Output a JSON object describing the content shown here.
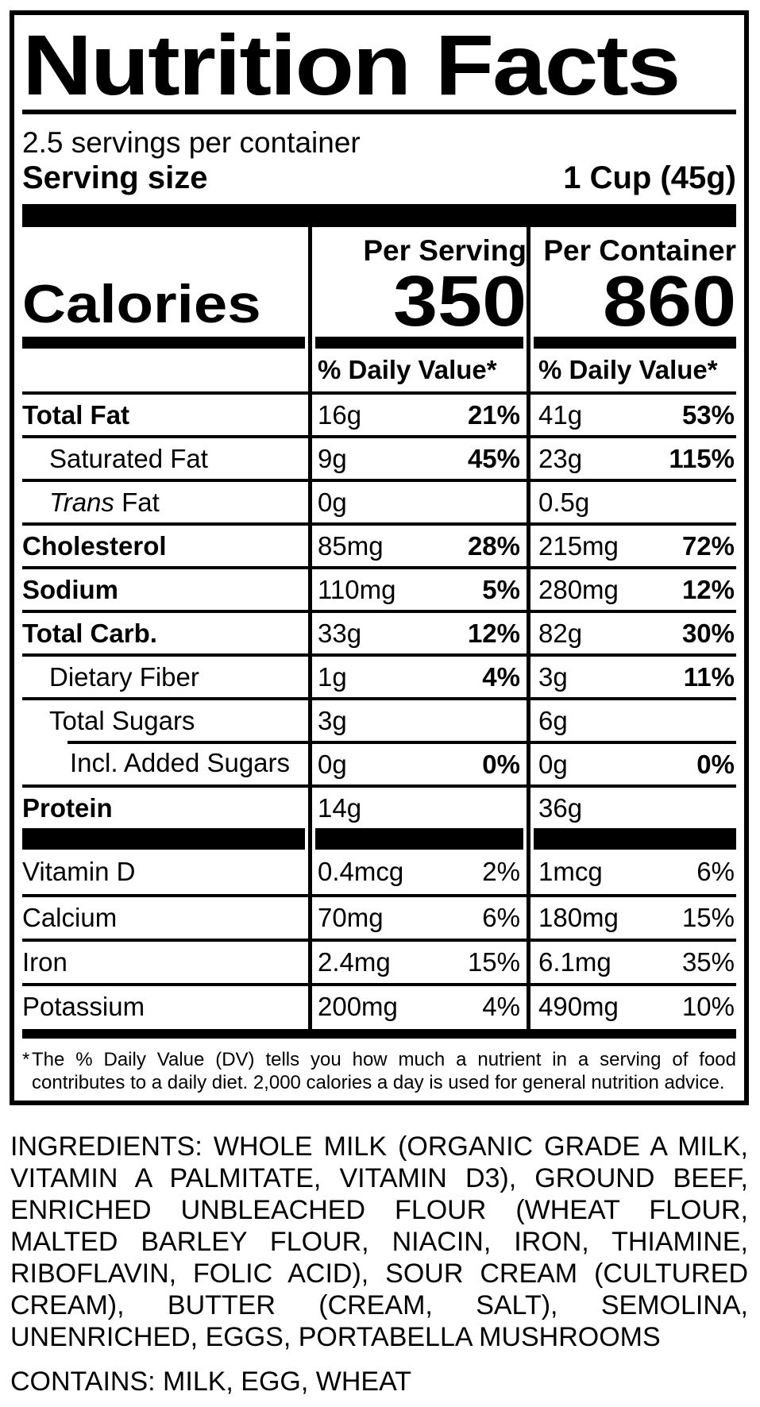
{
  "colors": {
    "ink": "#000000",
    "paper": "#ffffff"
  },
  "label": {
    "title": "Nutrition Facts",
    "servings_per_container": "2.5 servings per container",
    "serving_size": {
      "label": "Serving size",
      "value": "1 Cup (45g)"
    },
    "calories": {
      "label": "Calories",
      "columns": [
        {
          "header": "Per Serving",
          "value": "350"
        },
        {
          "header": "Per Container",
          "value": "860"
        }
      ]
    },
    "daily_value_header": "% Daily Value*",
    "nutrients": [
      {
        "name": "Total Fat",
        "bold": true,
        "indent": 0,
        "cols": [
          {
            "amount": "16g",
            "dv": "21%"
          },
          {
            "amount": "41g",
            "dv": "53%"
          }
        ]
      },
      {
        "name": "Saturated Fat",
        "bold": false,
        "indent": 1,
        "cols": [
          {
            "amount": "9g",
            "dv": "45%"
          },
          {
            "amount": "23g",
            "dv": "115%"
          }
        ]
      },
      {
        "name": " Fat",
        "italic_prefix": "Trans",
        "bold": false,
        "indent": 1,
        "cols": [
          {
            "amount": "0g",
            "dv": ""
          },
          {
            "amount": "0.5g",
            "dv": ""
          }
        ]
      },
      {
        "name": "Cholesterol",
        "bold": true,
        "indent": 0,
        "cols": [
          {
            "amount": "85mg",
            "dv": "28%"
          },
          {
            "amount": "215mg",
            "dv": "72%"
          }
        ]
      },
      {
        "name": "Sodium",
        "bold": true,
        "indent": 0,
        "cols": [
          {
            "amount": "110mg",
            "dv": "5%"
          },
          {
            "amount": "280mg",
            "dv": "12%"
          }
        ]
      },
      {
        "name": "Total Carb.",
        "bold": true,
        "indent": 0,
        "cols": [
          {
            "amount": "33g",
            "dv": "12%"
          },
          {
            "amount": "82g",
            "dv": "30%"
          }
        ]
      },
      {
        "name": "Dietary Fiber",
        "bold": false,
        "indent": 1,
        "cols": [
          {
            "amount": "1g",
            "dv": "4%"
          },
          {
            "amount": "3g",
            "dv": "11%"
          }
        ]
      },
      {
        "name": "Total Sugars",
        "bold": false,
        "indent": 1,
        "cols": [
          {
            "amount": "3g",
            "dv": ""
          },
          {
            "amount": "6g",
            "dv": ""
          }
        ]
      },
      {
        "name": "Incl. Added Sugars",
        "bold": false,
        "indent": 2,
        "indented_rule": true,
        "cols": [
          {
            "amount": "0g",
            "dv": "0%"
          },
          {
            "amount": "0g",
            "dv": "0%"
          }
        ]
      },
      {
        "name": "Protein",
        "bold": true,
        "indent": 0,
        "cols": [
          {
            "amount": "14g",
            "dv": ""
          },
          {
            "amount": "36g",
            "dv": ""
          }
        ]
      }
    ],
    "vitamins": [
      {
        "name": "Vitamin D",
        "cols": [
          {
            "amount": "0.4mcg",
            "dv": "2%"
          },
          {
            "amount": "1mcg",
            "dv": "6%"
          }
        ]
      },
      {
        "name": "Calcium",
        "cols": [
          {
            "amount": "70mg",
            "dv": "6%"
          },
          {
            "amount": "180mg",
            "dv": "15%"
          }
        ]
      },
      {
        "name": "Iron",
        "cols": [
          {
            "amount": "2.4mg",
            "dv": "15%"
          },
          {
            "amount": "6.1mg",
            "dv": "35%"
          }
        ]
      },
      {
        "name": "Potassium",
        "cols": [
          {
            "amount": "200mg",
            "dv": "4%"
          },
          {
            "amount": "490mg",
            "dv": "10%"
          }
        ]
      }
    ],
    "footnote": {
      "marker": "*",
      "text": "The % Daily Value (DV) tells you how much a nutrient in a serving of food contributes to a daily diet. 2,000 calories a day is used for general nutrition advice."
    }
  },
  "ingredients": "INGREDIENTS: WHOLE MILK (ORGANIC GRADE A MILK, VITAMIN A PALMITATE, VITAMIN D3), GROUND BEEF, ENRICHED UNBLEACHED FLOUR (WHEAT FLOUR, MALTED BARLEY FLOUR, NIACIN, IRON, THIAMINE, RIBOFLAVIN, FOLIC ACID), SOUR CREAM (CULTURED CREAM), BUTTER (CREAM, SALT), SEMOLINA, UNENRICHED, EGGS, PORTABELLA MUSHROOMS",
  "contains": "CONTAINS: MILK, EGG, WHEAT"
}
